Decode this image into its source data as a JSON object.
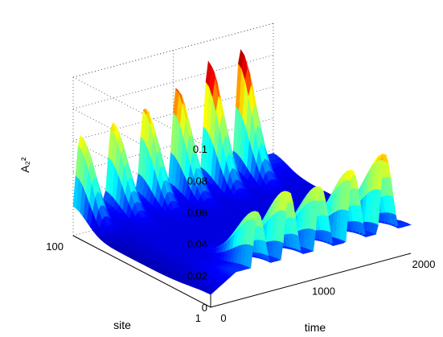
{
  "chart_data": {
    "type": "surface",
    "title": "",
    "xlabel": "time",
    "ylabel": "site",
    "zlabel": "A₂²",
    "x_range": [
      0,
      2000
    ],
    "y_range": [
      1,
      100
    ],
    "z_range": [
      0,
      0.1
    ],
    "x_ticks": [
      "0",
      "1000",
      "2000"
    ],
    "y_ticks": [
      "1",
      "100"
    ],
    "z_ticks": [
      "0",
      "0.02",
      "0.04",
      "0.06",
      "0.08",
      "0.1"
    ],
    "grid": true,
    "colormap": "jet",
    "colormap_stops": [
      "#00008f",
      "#0000ff",
      "#00ffff",
      "#7fff7f",
      "#ffff00",
      "#ff0000",
      "#800000"
    ],
    "front_edge_peaks": {
      "site": 1,
      "time": [
        470,
        780,
        1100,
        1420,
        1740
      ],
      "height": [
        0.052,
        0.06,
        0.057,
        0.062,
        0.067
      ]
    },
    "back_edge_peaks": {
      "site": 100,
      "time": [
        70,
        390,
        710,
        1030,
        1350,
        1670
      ],
      "height": [
        0.062,
        0.065,
        0.069,
        0.076,
        0.087,
        0.089
      ]
    }
  }
}
